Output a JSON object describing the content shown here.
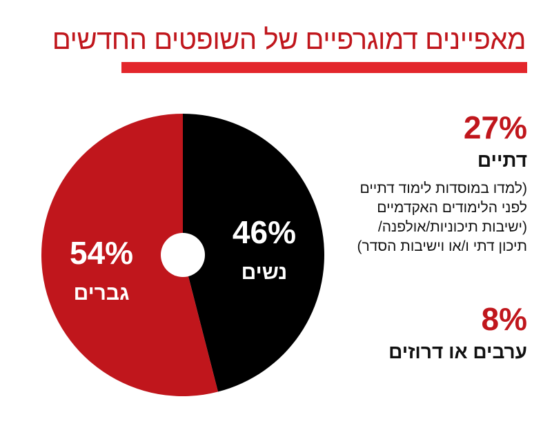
{
  "title": "מאפיינים דמוגרפיים של השופטים החדשים",
  "colors": {
    "accent_red": "#c0161c",
    "rule_red": "#e3262b",
    "men_slice": "#c0161c",
    "women_slice": "#000000",
    "text": "#111111"
  },
  "chart_data": {
    "type": "pie",
    "categories": [
      "נשים",
      "גברים"
    ],
    "values": [
      46,
      54
    ],
    "value_labels": [
      "46%",
      "54%"
    ],
    "series_colors": [
      "#000000",
      "#c0161c"
    ]
  },
  "stats": [
    {
      "value": "27%",
      "label": "דתיים",
      "note": [
        "(למדו במוסדות לימוד דתיים",
        "לפני הלימודים האקדמיים",
        "(ישיבות תיכוניות/אולפנה/",
        "תיכון דתי ו/או וישיבות הסדר)"
      ]
    },
    {
      "value": "8%",
      "label": "ערבים או דרוזים"
    }
  ]
}
